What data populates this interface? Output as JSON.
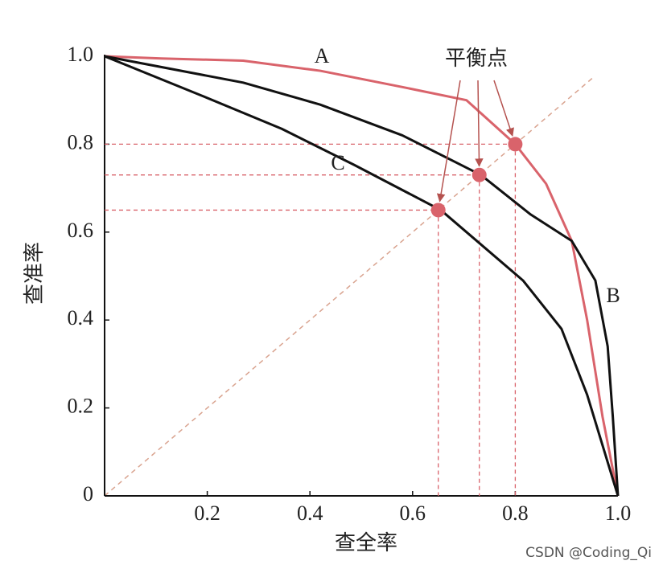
{
  "chart_data": {
    "type": "line",
    "x_label": "查全率",
    "y_label": "查准率",
    "xlim": [
      0,
      1
    ],
    "ylim": [
      0,
      1
    ],
    "xticks": [
      0.2,
      0.4,
      0.6,
      0.8,
      {
        "value": 1,
        "label": "1.0"
      }
    ],
    "yticks": [
      0,
      0.2,
      0.4,
      0.6,
      0.8,
      {
        "value": 1,
        "label": "1.0"
      }
    ],
    "series": [
      {
        "name": "A",
        "color": "#d9636b",
        "x": [
          0,
          0.11,
          0.27,
          0.42,
          0.58,
          0.705,
          0.8,
          0.86,
          0.91,
          0.94,
          0.97,
          1
        ],
        "values": [
          1,
          0.995,
          0.99,
          0.967,
          0.93,
          0.9,
          0.8,
          0.71,
          0.58,
          0.4,
          0.18,
          0
        ]
      },
      {
        "name": "B",
        "color": "#111111",
        "x": [
          0,
          0.27,
          0.42,
          0.58,
          0.733,
          0.83,
          0.91,
          0.956,
          0.98,
          0.99,
          1
        ],
        "values": [
          1,
          0.94,
          0.89,
          0.82,
          0.73,
          0.64,
          0.58,
          0.49,
          0.34,
          0.18,
          0
        ]
      },
      {
        "name": "C",
        "color": "#111111",
        "x": [
          0,
          0.19,
          0.345,
          0.486,
          0.655,
          0.815,
          0.89,
          0.94,
          1
        ],
        "values": [
          1,
          0.91,
          0.835,
          0.753,
          0.65,
          0.49,
          0.38,
          0.23,
          0
        ]
      }
    ],
    "balance_points": {
      "name": "平衡点",
      "color": "#d9636b",
      "x": [
        0.65,
        0.73,
        0.8
      ],
      "values": [
        0.65,
        0.73,
        0.8
      ]
    },
    "watermark": "CSDN @Coding_Qi"
  }
}
